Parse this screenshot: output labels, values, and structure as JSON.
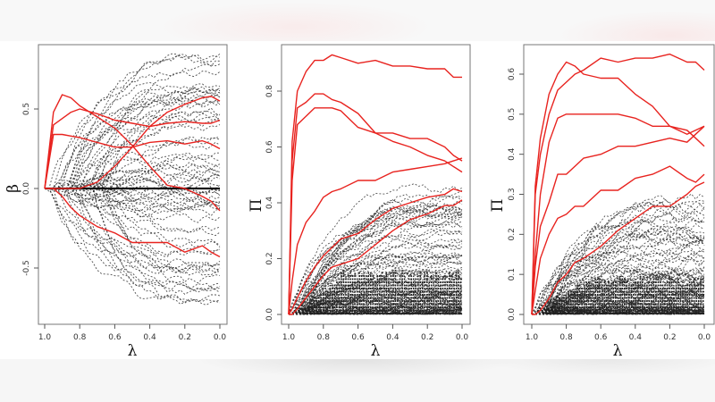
{
  "figure": {
    "panels": [
      {
        "id": "beta",
        "ylabel": "β",
        "xlabel": "λ",
        "xticks": [
          "1.0",
          "0.8",
          "0.6",
          "0.4",
          "0.2",
          "0.0"
        ],
        "yticks": [
          "-0.5",
          "0.0",
          "0.5"
        ]
      },
      {
        "id": "pi1",
        "ylabel": "Π",
        "xlabel": "λ",
        "xticks": [
          "1.0",
          "0.8",
          "0.6",
          "0.4",
          "0.2",
          "0.0"
        ],
        "yticks": [
          "0.0",
          "0.2",
          "0.4",
          "0.6",
          "0.8"
        ]
      },
      {
        "id": "pi2",
        "ylabel": "Π",
        "xlabel": "λ",
        "xticks": [
          "1.0",
          "0.8",
          "0.6",
          "0.4",
          "0.2",
          "0.0"
        ],
        "yticks": [
          "0.0",
          "0.1",
          "0.2",
          "0.3",
          "0.4",
          "0.5",
          "0.6"
        ]
      }
    ],
    "colors": {
      "signal": "#e8231f",
      "noise": "#222222",
      "frame": "#777777"
    }
  },
  "chart_data": [
    {
      "type": "line",
      "title": "",
      "xlabel": "λ",
      "ylabel": "β",
      "xlim": [
        1.0,
        0.0
      ],
      "ylim": [
        -0.8,
        0.85
      ],
      "x_reversed": true,
      "grid": false,
      "legend": "none",
      "xticks": [
        1.0,
        0.8,
        0.6,
        0.4,
        0.2,
        0.0
      ],
      "yticks": [
        -0.5,
        0.0,
        0.5
      ],
      "x": [
        1.0,
        0.95,
        0.9,
        0.85,
        0.8,
        0.7,
        0.6,
        0.5,
        0.4,
        0.3,
        0.2,
        0.1,
        0.05,
        0.0
      ],
      "series": [
        {
          "name": "red-1 (peak then falls)",
          "style": "solid-red",
          "values": [
            0.0,
            0.48,
            0.59,
            0.57,
            0.52,
            0.45,
            0.38,
            0.27,
            0.14,
            0.02,
            0.0,
            -0.05,
            -0.08,
            -0.14
          ]
        },
        {
          "name": "red-2",
          "style": "solid-red",
          "values": [
            0.0,
            0.4,
            0.44,
            0.48,
            0.5,
            0.47,
            0.43,
            0.41,
            0.39,
            0.41,
            0.42,
            0.41,
            0.41,
            0.43
          ]
        },
        {
          "name": "red-3",
          "style": "solid-red",
          "values": [
            0.0,
            0.34,
            0.34,
            0.33,
            0.32,
            0.29,
            0.26,
            0.26,
            0.29,
            0.3,
            0.28,
            0.3,
            0.28,
            0.25
          ]
        },
        {
          "name": "red-4 (rising)",
          "style": "solid-red",
          "values": [
            0.0,
            0.0,
            0.0,
            0.0,
            0.0,
            0.04,
            0.14,
            0.26,
            0.39,
            0.48,
            0.53,
            0.57,
            0.58,
            0.55
          ]
        },
        {
          "name": "red-5 (negative)",
          "style": "solid-red",
          "values": [
            0.0,
            0.0,
            -0.05,
            -0.12,
            -0.17,
            -0.24,
            -0.28,
            -0.34,
            -0.34,
            -0.34,
            -0.4,
            -0.36,
            -0.4,
            -0.43
          ]
        },
        {
          "name": "black-noise (many dashed paths)",
          "style": "dashed-black",
          "range_at_0": [
            -0.78,
            0.85
          ]
        }
      ]
    },
    {
      "type": "line",
      "title": "",
      "xlabel": "λ",
      "ylabel": "Π",
      "xlim": [
        1.0,
        0.0
      ],
      "ylim": [
        0.0,
        0.93
      ],
      "x_reversed": true,
      "grid": false,
      "legend": "none",
      "xticks": [
        1.0,
        0.8,
        0.6,
        0.4,
        0.2,
        0.0
      ],
      "yticks": [
        0.0,
        0.2,
        0.4,
        0.6,
        0.8
      ],
      "x": [
        1.0,
        0.98,
        0.95,
        0.9,
        0.85,
        0.8,
        0.75,
        0.7,
        0.6,
        0.5,
        0.4,
        0.3,
        0.2,
        0.1,
        0.05,
        0.0
      ],
      "series": [
        {
          "name": "red-1",
          "style": "solid-red",
          "values": [
            0.0,
            0.62,
            0.8,
            0.87,
            0.91,
            0.91,
            0.93,
            0.92,
            0.9,
            0.91,
            0.89,
            0.89,
            0.88,
            0.88,
            0.85,
            0.85
          ]
        },
        {
          "name": "red-2",
          "style": "solid-red",
          "values": [
            0.0,
            0.55,
            0.74,
            0.76,
            0.79,
            0.79,
            0.77,
            0.76,
            0.72,
            0.65,
            0.65,
            0.63,
            0.63,
            0.6,
            0.57,
            0.55
          ]
        },
        {
          "name": "red-3",
          "style": "solid-red",
          "values": [
            0.0,
            0.48,
            0.68,
            0.71,
            0.74,
            0.74,
            0.74,
            0.73,
            0.67,
            0.65,
            0.62,
            0.6,
            0.57,
            0.55,
            0.53,
            0.51
          ]
        },
        {
          "name": "red-4",
          "style": "solid-red",
          "values": [
            0.0,
            0.12,
            0.25,
            0.33,
            0.37,
            0.42,
            0.44,
            0.45,
            0.48,
            0.48,
            0.51,
            0.52,
            0.53,
            0.54,
            0.55,
            0.56
          ]
        },
        {
          "name": "red-5",
          "style": "solid-red",
          "values": [
            0.0,
            0.02,
            0.06,
            0.12,
            0.17,
            0.21,
            0.24,
            0.27,
            0.29,
            0.34,
            0.38,
            0.4,
            0.42,
            0.43,
            0.45,
            0.44
          ]
        },
        {
          "name": "red-6",
          "style": "solid-red",
          "values": [
            0.0,
            0.0,
            0.02,
            0.06,
            0.1,
            0.14,
            0.17,
            0.18,
            0.2,
            0.25,
            0.3,
            0.34,
            0.36,
            0.39,
            0.39,
            0.41
          ]
        },
        {
          "name": "black-noise (dense dashed paths)",
          "style": "dashed-black",
          "range_at_0": [
            0.0,
            0.46
          ]
        }
      ]
    },
    {
      "type": "line",
      "title": "",
      "xlabel": "λ",
      "ylabel": "Π",
      "xlim": [
        1.0,
        0.0
      ],
      "ylim": [
        0.0,
        0.65
      ],
      "x_reversed": true,
      "grid": false,
      "legend": "none",
      "xticks": [
        1.0,
        0.8,
        0.6,
        0.4,
        0.2,
        0.0
      ],
      "yticks": [
        0.0,
        0.1,
        0.2,
        0.3,
        0.4,
        0.5,
        0.6
      ],
      "x": [
        1.0,
        0.98,
        0.95,
        0.9,
        0.85,
        0.8,
        0.75,
        0.7,
        0.6,
        0.5,
        0.4,
        0.3,
        0.2,
        0.1,
        0.05,
        0.0
      ],
      "series": [
        {
          "name": "red-1",
          "style": "solid-red",
          "values": [
            0.0,
            0.32,
            0.44,
            0.55,
            0.6,
            0.63,
            0.62,
            0.6,
            0.59,
            0.59,
            0.55,
            0.52,
            0.47,
            0.46,
            0.44,
            0.42
          ]
        },
        {
          "name": "red-2",
          "style": "solid-red",
          "values": [
            0.0,
            0.3,
            0.4,
            0.5,
            0.56,
            0.58,
            0.6,
            0.61,
            0.64,
            0.63,
            0.64,
            0.64,
            0.65,
            0.63,
            0.63,
            0.61
          ]
        },
        {
          "name": "red-3",
          "style": "solid-red",
          "values": [
            0.0,
            0.15,
            0.3,
            0.43,
            0.49,
            0.5,
            0.5,
            0.5,
            0.5,
            0.5,
            0.49,
            0.47,
            0.47,
            0.45,
            0.46,
            0.47
          ]
        },
        {
          "name": "red-4",
          "style": "solid-red",
          "values": [
            0.0,
            0.12,
            0.22,
            0.28,
            0.35,
            0.35,
            0.37,
            0.39,
            0.4,
            0.42,
            0.42,
            0.43,
            0.44,
            0.43,
            0.45,
            0.47
          ]
        },
        {
          "name": "red-5",
          "style": "solid-red",
          "values": [
            0.0,
            0.06,
            0.14,
            0.2,
            0.24,
            0.25,
            0.27,
            0.27,
            0.31,
            0.31,
            0.34,
            0.35,
            0.37,
            0.34,
            0.33,
            0.35
          ]
        },
        {
          "name": "red-6",
          "style": "solid-red",
          "values": [
            0.0,
            0.0,
            0.01,
            0.04,
            0.08,
            0.1,
            0.13,
            0.14,
            0.17,
            0.21,
            0.24,
            0.27,
            0.27,
            0.3,
            0.32,
            0.33
          ]
        },
        {
          "name": "black-noise (dense dashed paths)",
          "style": "dashed-black",
          "range_at_0": [
            0.0,
            0.29
          ]
        }
      ]
    }
  ]
}
